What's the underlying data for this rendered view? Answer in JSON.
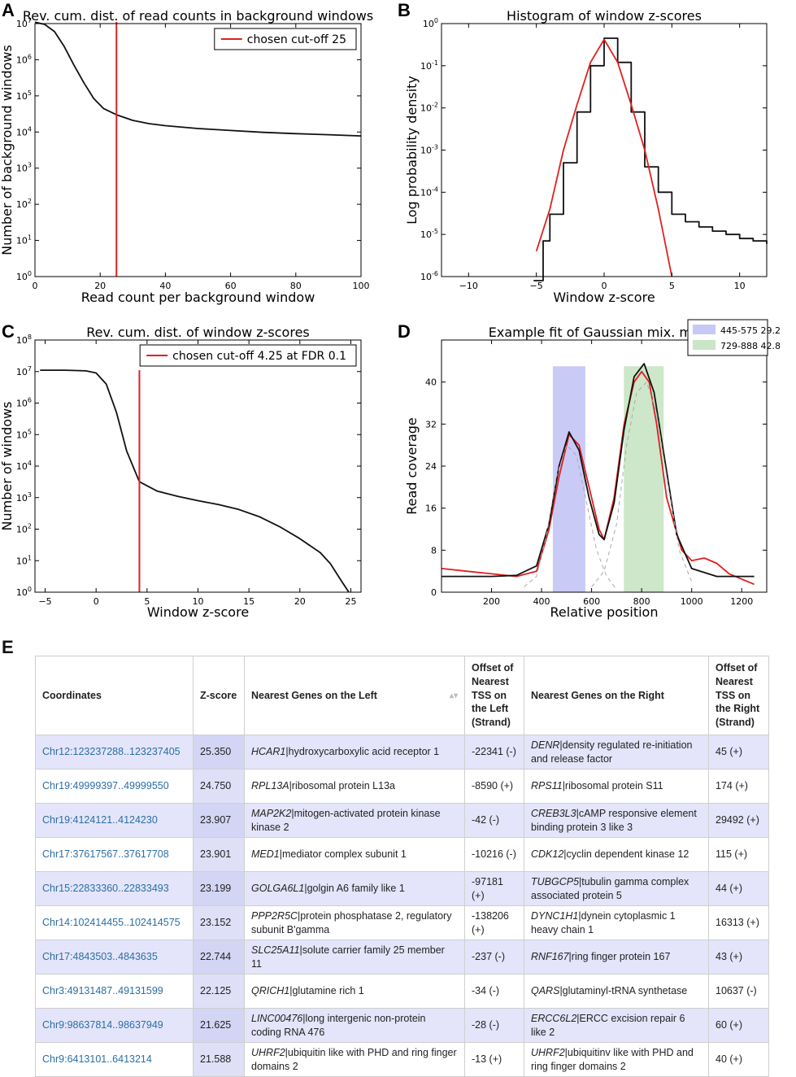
{
  "panel_letters": {
    "a": "A",
    "b": "B",
    "c": "C",
    "d": "D",
    "e": "E"
  },
  "chart_data": [
    {
      "id": "A",
      "type": "line",
      "title": "Rev. cum. dist. of read counts in background windows",
      "xlabel": "Read count per background window",
      "ylabel": "Number of background windows",
      "xlim": [
        0,
        100
      ],
      "ylim_log10": [
        0,
        7
      ],
      "y_scale": "log",
      "x_ticks": [
        "0",
        "20",
        "40",
        "60",
        "80",
        "100"
      ],
      "y_ticks": [
        "10^0",
        "10^1",
        "10^2",
        "10^3",
        "10^4",
        "10^5",
        "10^6",
        "10^7"
      ],
      "legend": {
        "label": "chosen cut-off 25",
        "placement": "top-right"
      },
      "series": [
        {
          "x": [
            0,
            3,
            6,
            9,
            12,
            15,
            18,
            21,
            25,
            30,
            35,
            40,
            50,
            60,
            70,
            80,
            90,
            100
          ],
          "y": [
            11000000.0,
            9500000.0,
            6000000.0,
            2300000.0,
            700000.0,
            230000.0,
            85000.0,
            45000.0,
            30000.0,
            21000.0,
            17000.0,
            15000.0,
            12500.0,
            11000.0,
            9800.0,
            9000.0,
            8400.0,
            7800.0
          ]
        }
      ],
      "cutoff_line": {
        "x": 25,
        "y_top": 11000000.0,
        "color": "#e02020"
      }
    },
    {
      "id": "B",
      "type": "line",
      "title": "Histogram of window z-scores",
      "xlabel": "Window z-score",
      "ylabel": "Log probability density",
      "xlim": [
        -12,
        12
      ],
      "ylim_log10": [
        -6,
        0
      ],
      "y_scale": "log",
      "x_ticks": [
        "−10",
        "−5",
        "0",
        "5",
        "10"
      ],
      "y_ticks": [
        "10^-6",
        "10^-5",
        "10^-4",
        "10^-3",
        "10^-2",
        "10^-1",
        "10^0"
      ],
      "series": [
        {
          "name": "histogram",
          "color": "#111111",
          "x": [
            -5.2,
            -4.5,
            -4,
            -3,
            -2,
            -1,
            0,
            1,
            2,
            3,
            4,
            5,
            6,
            7,
            8,
            9,
            10,
            11,
            12
          ],
          "y": [
            8e-07,
            7e-06,
            3e-05,
            0.0005,
            0.008,
            0.1,
            0.45,
            0.12,
            0.008,
            0.0004,
            0.0001,
            3e-05,
            2e-05,
            1.5e-05,
            1.2e-05,
            1e-05,
            8e-06,
            7e-06,
            6e-06
          ]
        },
        {
          "name": "gaussian fit",
          "color": "#e02020",
          "x": [
            -5,
            -4,
            -3,
            -2,
            -1,
            0,
            1,
            2,
            3,
            4,
            5
          ],
          "y": [
            4e-06,
            4e-05,
            0.001,
            0.012,
            0.12,
            0.42,
            0.12,
            0.012,
            0.001,
            4e-05,
            1e-06
          ]
        }
      ]
    },
    {
      "id": "C",
      "type": "line",
      "title": "Rev. cum. dist. of window z-scores",
      "xlabel": "Window z-score",
      "ylabel": "Number of windows",
      "xlim": [
        -6,
        26
      ],
      "ylim_log10": [
        0,
        8
      ],
      "y_scale": "log",
      "x_ticks": [
        "−5",
        "0",
        "5",
        "10",
        "15",
        "20",
        "25"
      ],
      "y_ticks": [
        "10^0",
        "10^1",
        "10^2",
        "10^3",
        "10^4",
        "10^5",
        "10^6",
        "10^7",
        "10^8"
      ],
      "legend": {
        "label": "chosen cut-off 4.25 at FDR 0.1",
        "placement": "top-right"
      },
      "series": [
        {
          "x": [
            -5.5,
            -3,
            -1,
            0,
            1,
            2,
            3,
            4.25,
            6,
            8,
            10,
            12,
            14,
            16,
            18,
            20,
            22,
            23,
            24,
            24.8
          ],
          "y": [
            11000000.0,
            11000000.0,
            10500000.0,
            9000000.0,
            4000000.0,
            500000.0,
            30000.0,
            3200.0,
            1600.0,
            1100.0,
            800,
            600,
            420,
            250,
            120,
            50,
            18,
            8,
            2.5,
            1
          ]
        }
      ],
      "cutoff_line": {
        "x": 4.25,
        "y_top": 11000000.0,
        "color": "#e02020"
      }
    },
    {
      "id": "D",
      "type": "line",
      "title": "Example fit of Gaussian mix. model",
      "xlabel": "Relative position",
      "ylabel": "Read coverage",
      "xlim": [
        0,
        1300
      ],
      "ylim": [
        0,
        48
      ],
      "x_ticks": [
        "200",
        "400",
        "600",
        "800",
        "1000",
        "1200"
      ],
      "y_ticks": [
        "0",
        "8",
        "16",
        "24",
        "32",
        "40"
      ],
      "legend_entries": [
        {
          "label": "445-575 29.2",
          "color": "#c6c8f6",
          "x_start": 445,
          "x_end": 575
        },
        {
          "label": "729-888 42.8",
          "color": "#c9e6c6",
          "x_start": 729,
          "x_end": 888
        }
      ],
      "series": [
        {
          "name": "coverage",
          "color": "#e02020",
          "x": [
            0,
            100,
            200,
            300,
            380,
            430,
            470,
            510,
            550,
            590,
            630,
            650,
            690,
            730,
            770,
            800,
            830,
            860,
            900,
            960,
            1000,
            1050,
            1100,
            1150,
            1200,
            1250
          ],
          "y": [
            4.5,
            4,
            3.5,
            3,
            4,
            12,
            22,
            30,
            28,
            20,
            12,
            10,
            18,
            32,
            40,
            42,
            40,
            32,
            18,
            8,
            6,
            6.5,
            5.5,
            3.5,
            2.5,
            1.5
          ]
        },
        {
          "name": "mixture fit",
          "color": "#111111",
          "x": [
            0,
            200,
            300,
            380,
            430,
            470,
            510,
            550,
            590,
            630,
            650,
            690,
            730,
            770,
            810,
            850,
            890,
            940,
            1000,
            1100,
            1250
          ],
          "y": [
            3,
            3,
            3.2,
            5,
            13,
            24,
            30.5,
            27,
            18,
            11,
            10,
            17,
            31,
            41,
            43.5,
            38,
            26,
            11,
            4.5,
            3,
            3
          ]
        },
        {
          "name": "component 1",
          "color": "#aaaaaa",
          "x": [
            330,
            380,
            420,
            460,
            500,
            540,
            580,
            620,
            660,
            700
          ],
          "y": [
            1,
            3,
            11,
            22,
            28,
            26,
            17,
            8,
            3,
            0.5
          ]
        },
        {
          "name": "component 2",
          "color": "#aaaaaa",
          "x": [
            600,
            650,
            700,
            740,
            780,
            820,
            860,
            900,
            950,
            1000
          ],
          "y": [
            1,
            4,
            13,
            28,
            38,
            40,
            34,
            22,
            8,
            2
          ]
        }
      ]
    }
  ],
  "table": {
    "headers": [
      "Coordinates",
      "Z-score",
      "Nearest Genes on the Left",
      "Offset of Nearest TSS on the Left (Strand)",
      "Nearest Genes on the Right",
      "Offset of Nearest TSS on the Right (Strand)"
    ],
    "sort_icon": "sort-arrows-icon",
    "rows": [
      {
        "coord": "Chr12:123237288..123237405",
        "z": "25.350",
        "left_gene": "HCAR1",
        "left_desc": "|hydroxycarboxylic acid receptor 1",
        "left_off": "-22341 (-)",
        "right_gene": "DENR",
        "right_desc": "|density regulated re-initiation and release factor",
        "right_off": "45 (+)"
      },
      {
        "coord": "Chr19:49999397..49999550",
        "z": "24.750",
        "left_gene": "RPL13A",
        "left_desc": "|ribosomal protein L13a",
        "left_off": "-8590 (+)",
        "right_gene": "RPS11",
        "right_desc": "|ribosomal protein S11",
        "right_off": "174 (+)"
      },
      {
        "coord": "Chr19:4124121..4124230",
        "z": "23.907",
        "left_gene": "MAP2K2",
        "left_desc": "|mitogen-activated protein kinase kinase 2",
        "left_off": "-42 (-)",
        "right_gene": "CREB3L3",
        "right_desc": "|cAMP responsive element binding protein 3 like 3",
        "right_off": "29492 (+)"
      },
      {
        "coord": "Chr17:37617567..37617708",
        "z": "23.901",
        "left_gene": "MED1",
        "left_desc": "|mediator complex subunit 1",
        "left_off": "-10216 (-)",
        "right_gene": "CDK12",
        "right_desc": "|cyclin dependent kinase 12",
        "right_off": "115 (+)"
      },
      {
        "coord": "Chr15:22833360..22833493",
        "z": "23.199",
        "left_gene": "GOLGA6L1",
        "left_desc": "|golgin A6 family like 1",
        "left_off": "-97181 (+)",
        "right_gene": "TUBGCP5",
        "right_desc": "|tubulin gamma complex associated protein 5",
        "right_off": "44 (+)"
      },
      {
        "coord": "Chr14:102414455..102414575",
        "z": "23.152",
        "left_gene": "PPP2R5C",
        "left_desc": "|protein phosphatase 2, regulatory subunit B'gamma",
        "left_off": "-138206 (+)",
        "right_gene": "DYNC1H1",
        "right_desc": "|dynein cytoplasmic 1 heavy chain 1",
        "right_off": "16313 (+)"
      },
      {
        "coord": "Chr17:4843503..4843635",
        "z": "22.744",
        "left_gene": "SLC25A11",
        "left_desc": "|solute carrier family 25 member 11",
        "left_off": "-237 (-)",
        "right_gene": "RNF167",
        "right_desc": "|ring finger protein 167",
        "right_off": "43 (+)"
      },
      {
        "coord": "Chr3:49131487..49131599",
        "z": "22.125",
        "left_gene": "QRICH1",
        "left_desc": "|glutamine rich 1",
        "left_off": "-34 (-)",
        "right_gene": "QARS",
        "right_desc": "|glutaminyl-tRNA synthetase",
        "right_off": "10637 (-)"
      },
      {
        "coord": "Chr9:98637814..98637949",
        "z": "21.625",
        "left_gene": "LINC00476",
        "left_desc": "|long intergenic non-protein coding RNA 476",
        "left_off": "-28 (-)",
        "right_gene": "ERCC6L2",
        "right_desc": "|ERCC excision repair 6 like 2",
        "right_off": "60 (+)"
      },
      {
        "coord": "Chr9:6413101..6413214",
        "z": "21.588",
        "left_gene": "UHRF2",
        "left_desc": "|ubiquitin like with PHD and ring finger domains 2",
        "left_off": "-13 (+)",
        "right_gene": "UHRF2",
        "right_desc": "|ubiquitinv like with PHD and ring finger domains 2",
        "right_off": "40 (+)"
      }
    ]
  }
}
